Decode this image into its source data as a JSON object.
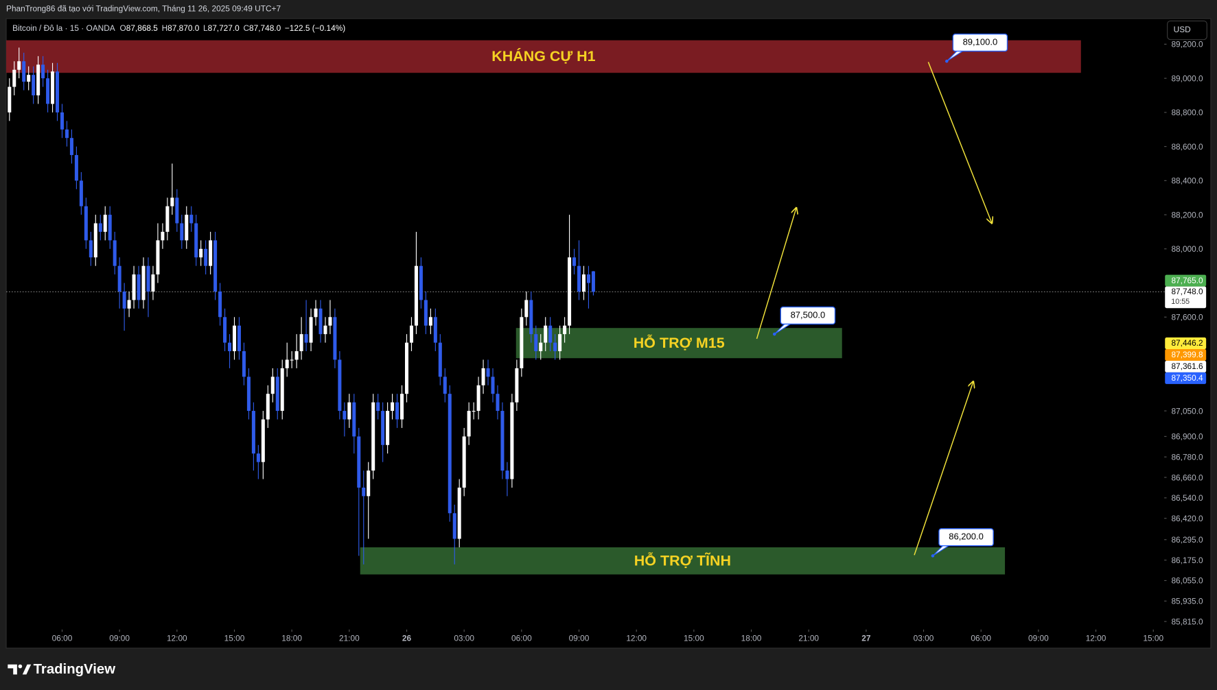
{
  "header": {
    "attribution": "PhanTrong86 đã tạo với TradingView.com, Tháng 11 26, 2025 09:49 UTC+7",
    "symbol": "Bitcoin / Đô la · 15 · OANDA",
    "ohlc": [
      {
        "key": "O",
        "value": "87,868.5"
      },
      {
        "key": "H",
        "value": "87,870.0"
      },
      {
        "key": "L",
        "value": "87,727.0"
      },
      {
        "key": "C",
        "value": "87,748.0"
      }
    ],
    "change": "−122.5 (−0.14%)",
    "currency": "USD"
  },
  "chart_data": {
    "type": "candlestick",
    "x": [
      3.25,
      3.5,
      3.75,
      4,
      4.25,
      4.5,
      4.75,
      5,
      5.25,
      5.5,
      5.75,
      6,
      6.25,
      6.5,
      6.75,
      7,
      7.25,
      7.5,
      7.75,
      8,
      8.25,
      8.5,
      8.75,
      9,
      9.25,
      9.5,
      9.75,
      10,
      10.25,
      10.5,
      10.75,
      11,
      11.25,
      11.5,
      11.75,
      12,
      12.25,
      12.5,
      12.75,
      13,
      13.25,
      13.5,
      13.75,
      14,
      14.25,
      14.5,
      14.75,
      15,
      15.25,
      15.5,
      15.75,
      16,
      16.25,
      16.5,
      16.75,
      17,
      17.25,
      17.5,
      17.75,
      18,
      18.25,
      18.5,
      18.75,
      19,
      19.25,
      19.5,
      19.75,
      20,
      20.25,
      20.5,
      20.75,
      21,
      21.25,
      21.5,
      21.75,
      22,
      22.25,
      22.5,
      22.75,
      23,
      23.25,
      23.5,
      23.75,
      24,
      24.25,
      24.5,
      24.75,
      25,
      25.25,
      25.5,
      25.75,
      26,
      26.25,
      26.5,
      26.75,
      27,
      27.25,
      27.5,
      27.75,
      28,
      28.25,
      28.5,
      28.75,
      29,
      29.25,
      29.5,
      29.75,
      30,
      30.25,
      30.5,
      30.75,
      31,
      31.25,
      31.5,
      31.75,
      32,
      32.25,
      32.5,
      32.75,
      33,
      33.25,
      33.5,
      33.75
    ],
    "open": [
      88800,
      88950,
      89050,
      89100,
      88980,
      89020,
      88900,
      89080,
      89000,
      88850,
      89040,
      88800,
      88700,
      88650,
      88550,
      88400,
      88250,
      88050,
      87950,
      88150,
      88100,
      88200,
      88050,
      87900,
      87750,
      87650,
      87700,
      87850,
      87700,
      87900,
      87750,
      87850,
      88050,
      88100,
      88250,
      88300,
      88150,
      88050,
      88200,
      88150,
      87950,
      88000,
      87900,
      88050,
      87750,
      87600,
      87450,
      87400,
      87550,
      87400,
      87250,
      87050,
      86800,
      86750,
      87000,
      87150,
      87250,
      87050,
      87300,
      87350,
      87350,
      87400,
      87500,
      87450,
      87600,
      87650,
      87500,
      87550,
      87600,
      87350,
      87050,
      87000,
      87100,
      86900,
      86600,
      86550,
      86700,
      87100,
      87050,
      86850,
      87050,
      87100,
      87000,
      87150,
      87450,
      87550,
      87900,
      87700,
      87550,
      87600,
      87450,
      87250,
      87150,
      86450,
      86300,
      86600,
      86900,
      87050,
      87050,
      87200,
      87300,
      87250,
      87150,
      87050,
      86700,
      86650,
      87100,
      87300,
      87600,
      87700,
      87500,
      87400,
      87450,
      87550,
      87450,
      87400,
      87500,
      87550,
      87950,
      87900,
      87750,
      87850,
      87868.5
    ],
    "high": [
      89000,
      89100,
      89180,
      89150,
      89070,
      89070,
      89130,
      89130,
      89050,
      89090,
      89090,
      88850,
      88750,
      88700,
      88600,
      88450,
      88300,
      88100,
      88200,
      88200,
      88250,
      88250,
      88100,
      87950,
      87800,
      87750,
      87900,
      87900,
      87950,
      87950,
      87900,
      88150,
      88150,
      88300,
      88500,
      88350,
      88200,
      88250,
      88250,
      88200,
      88050,
      88050,
      88100,
      88100,
      87800,
      87650,
      87500,
      87600,
      87600,
      87450,
      87300,
      87100,
      86850,
      87050,
      87200,
      87300,
      87300,
      87350,
      87450,
      87400,
      87500,
      87600,
      87700,
      87650,
      87700,
      87700,
      87600,
      87700,
      87650,
      87400,
      87100,
      87150,
      87150,
      86950,
      86700,
      86750,
      87150,
      87150,
      87100,
      87100,
      87150,
      87150,
      87200,
      87500,
      87600,
      88100,
      87950,
      87750,
      87650,
      87650,
      87500,
      87300,
      87200,
      86500,
      86650,
      86950,
      87100,
      87100,
      87250,
      87350,
      87350,
      87300,
      87200,
      87100,
      86750,
      87150,
      87350,
      87650,
      87750,
      87750,
      87550,
      87500,
      87600,
      87600,
      87500,
      87550,
      87600,
      88200,
      88000,
      88050,
      87900,
      87900,
      87870
    ],
    "low": [
      88750,
      88900,
      89000,
      88930,
      88930,
      88850,
      88850,
      88950,
      88800,
      88800,
      88750,
      88650,
      88600,
      88500,
      88350,
      88200,
      88000,
      87900,
      87900,
      88050,
      88050,
      88000,
      87850,
      87650,
      87520,
      87600,
      87650,
      87650,
      87650,
      87600,
      87700,
      87800,
      88000,
      88050,
      88200,
      88100,
      88000,
      88000,
      88100,
      87900,
      87900,
      87850,
      87850,
      87700,
      87550,
      87400,
      87300,
      87350,
      87350,
      87200,
      87000,
      86700,
      86650,
      86650,
      86950,
      87100,
      87000,
      87000,
      87250,
      87300,
      87300,
      87350,
      87400,
      87400,
      87550,
      87450,
      87450,
      87500,
      87300,
      87000,
      86900,
      86950,
      86800,
      86200,
      86150,
      86300,
      86650,
      87000,
      86750,
      86800,
      87000,
      86950,
      86950,
      87100,
      87400,
      87500,
      87650,
      87500,
      87500,
      87400,
      87200,
      87100,
      86400,
      86150,
      86250,
      86550,
      86850,
      87000,
      87000,
      87150,
      87200,
      87100,
      87000,
      86650,
      86550,
      86600,
      87050,
      87250,
      87550,
      87450,
      87350,
      87350,
      87400,
      87400,
      87350,
      87350,
      87450,
      87500,
      87850,
      87700,
      87700,
      87650,
      87727
    ],
    "close": [
      88950,
      89050,
      89100,
      88980,
      89020,
      88900,
      89080,
      89000,
      88850,
      89040,
      88800,
      88700,
      88650,
      88550,
      88400,
      88250,
      88050,
      87950,
      88150,
      88100,
      88200,
      88050,
      87900,
      87750,
      87650,
      87700,
      87850,
      87700,
      87900,
      87750,
      87850,
      88050,
      88100,
      88250,
      88300,
      88150,
      88050,
      88200,
      88150,
      87950,
      88000,
      87900,
      88050,
      87750,
      87600,
      87450,
      87400,
      87550,
      87400,
      87250,
      87050,
      86800,
      86750,
      87000,
      87150,
      87250,
      87050,
      87300,
      87350,
      87350,
      87400,
      87500,
      87450,
      87600,
      87650,
      87500,
      87550,
      87600,
      87350,
      87050,
      87000,
      87100,
      86900,
      86600,
      86550,
      86700,
      87100,
      87050,
      86850,
      87050,
      87100,
      87000,
      87150,
      87450,
      87550,
      87900,
      87700,
      87550,
      87600,
      87450,
      87250,
      87150,
      86450,
      86300,
      86600,
      86900,
      87050,
      87050,
      87200,
      87300,
      87250,
      87150,
      87050,
      86700,
      86650,
      87100,
      87300,
      87600,
      87700,
      87500,
      87400,
      87450,
      87550,
      87450,
      87400,
      87500,
      87550,
      87950,
      87900,
      87750,
      87850,
      87800,
      87748
    ],
    "up_color": "#ffffff",
    "down_color": "#2f5bea",
    "xlim": [
      3.08,
      63.57
    ],
    "ylim": [
      85768,
      89350
    ],
    "xticks": [
      {
        "value": 6,
        "label": "06:00"
      },
      {
        "value": 9,
        "label": "09:00"
      },
      {
        "value": 12,
        "label": "12:00"
      },
      {
        "value": 15,
        "label": "15:00"
      },
      {
        "value": 18,
        "label": "18:00"
      },
      {
        "value": 21,
        "label": "21:00"
      },
      {
        "value": 24,
        "label": "26"
      },
      {
        "value": 27,
        "label": "03:00"
      },
      {
        "value": 30,
        "label": "06:00"
      },
      {
        "value": 33,
        "label": "09:00"
      },
      {
        "value": 36,
        "label": "12:00"
      },
      {
        "value": 39,
        "label": "15:00"
      },
      {
        "value": 42,
        "label": "18:00"
      },
      {
        "value": 45,
        "label": "21:00"
      },
      {
        "value": 48,
        "label": "27"
      },
      {
        "value": 51,
        "label": "03:00"
      },
      {
        "value": 54,
        "label": "06:00"
      },
      {
        "value": 57,
        "label": "09:00"
      },
      {
        "value": 60,
        "label": "12:00"
      },
      {
        "value": 63,
        "label": "15:00"
      }
    ],
    "yticks": [
      {
        "value": 89200,
        "label": "89,200.0"
      },
      {
        "value": 89000,
        "label": "89,000.0"
      },
      {
        "value": 88800,
        "label": "88,800.0"
      },
      {
        "value": 88600,
        "label": "88,600.0"
      },
      {
        "value": 88400,
        "label": "88,400.0"
      },
      {
        "value": 88200,
        "label": "88,200.0"
      },
      {
        "value": 88000,
        "label": "88,000.0"
      },
      {
        "value": 87600,
        "label": "87,600.0"
      },
      {
        "value": 87050,
        "label": "87,050.0"
      },
      {
        "value": 86900,
        "label": "86,900.0"
      },
      {
        "value": 86780,
        "label": "86,780.0"
      },
      {
        "value": 86660,
        "label": "86,660.0"
      },
      {
        "value": 86540,
        "label": "86,540.0"
      },
      {
        "value": 86420,
        "label": "86,420.0"
      },
      {
        "value": 86295,
        "label": "86,295.0"
      },
      {
        "value": 86175,
        "label": "86,175.0"
      },
      {
        "value": 86055,
        "label": "86,055.0"
      },
      {
        "value": 85935,
        "label": "85,935.0"
      },
      {
        "value": 85815,
        "label": "85,815.0"
      }
    ],
    "last_price": {
      "value": 87748,
      "label": "87,748.0",
      "countdown": "10:55"
    },
    "price_tags": [
      {
        "value": 87765,
        "label": "87,765.0",
        "color": "#4caf50",
        "text_color": "#ffffff"
      },
      {
        "value": 87446.2,
        "label": "87,446.2",
        "color": "#ffeb3b",
        "text_color": "#000000"
      },
      {
        "value": 87399.8,
        "label": "87,399.8",
        "color": "#ff9800",
        "text_color": "#ffffff"
      },
      {
        "value": 87361.6,
        "label": "87,361.6",
        "color": "#ffffff",
        "text_color": "#000000"
      },
      {
        "value": 87350.4,
        "label": "87,350.4",
        "color": "#2962ff",
        "text_color": "#ffffff"
      }
    ],
    "zones": [
      {
        "label": "KHÁNG CỰ H1",
        "x": [
          3.08,
          59.22
        ],
        "y": [
          89032,
          89223
        ],
        "color": "#7a1c22"
      },
      {
        "label": "HỖ TRỢ M15",
        "x": [
          29.71,
          46.74
        ],
        "y": [
          87359,
          87536
        ],
        "color": "#2b5a2b"
      },
      {
        "label": "HỖ TRỢ TĨNH",
        "x": [
          21.57,
          55.25
        ],
        "y": [
          86091,
          86250
        ],
        "color": "#2b5a2b"
      }
    ],
    "callouts": [
      {
        "value": 89100,
        "label": "89,100.0",
        "x": 52.21
      },
      {
        "value": 87500,
        "label": "87,500.0",
        "x": 43.21
      },
      {
        "value": 86200,
        "label": "86,200.0",
        "x": 51.48
      }
    ]
  },
  "footer": {
    "brand": "TradingView"
  }
}
